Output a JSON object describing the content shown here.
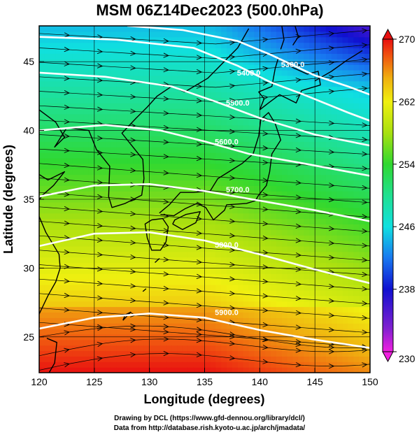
{
  "title": "MSM 06Z14Dec2023 (500.0hPa)",
  "xlabel": "Longitude (degrees)",
  "ylabel": "Latitude  (degrees)",
  "credits": {
    "line1": "Drawing by DCL (https://www.gfd-dennou.org/library/dcl/)",
    "line2": "Data from http://database.rish.kyoto-u.ac.jp/arch/jmadata/"
  },
  "chart_data": {
    "type": "heatmap",
    "title": "MSM 06Z14Dec2023 (500.0hPa)",
    "xlabel": "Longitude (degrees)",
    "ylabel": "Latitude  (degrees)",
    "xlim": [
      120,
      150
    ],
    "ylim": [
      22.4,
      47.6
    ],
    "x_ticks": [
      120,
      125,
      130,
      135,
      140,
      145,
      150
    ],
    "y_ticks": [
      25,
      30,
      35,
      40,
      45
    ],
    "grid": true,
    "colorbar": {
      "range": [
        230,
        270
      ],
      "tick_labels": [
        "270",
        "262",
        "254",
        "246",
        "238",
        "230"
      ],
      "tick_values": [
        270,
        262,
        254,
        246,
        238,
        230
      ],
      "stops": [
        {
          "value": 230,
          "color": "#f020e0"
        },
        {
          "value": 233,
          "color": "#8020d0"
        },
        {
          "value": 238,
          "color": "#1010d0"
        },
        {
          "value": 242,
          "color": "#1878f0"
        },
        {
          "value": 246,
          "color": "#10e0e0"
        },
        {
          "value": 250,
          "color": "#20e090"
        },
        {
          "value": 254,
          "color": "#30d830"
        },
        {
          "value": 258,
          "color": "#a8e010"
        },
        {
          "value": 262,
          "color": "#f0f010"
        },
        {
          "value": 265,
          "color": "#f0b010"
        },
        {
          "value": 268,
          "color": "#f05010"
        },
        {
          "value": 270,
          "color": "#e81010"
        }
      ]
    },
    "contours": [
      {
        "label": "5300.0",
        "points": [
          [
            128,
            47.6
          ],
          [
            133,
            47.3
          ],
          [
            138,
            46.5
          ],
          [
            141,
            45.5
          ],
          [
            145,
            44.0
          ],
          [
            148,
            43.2
          ],
          [
            150,
            42.6
          ]
        ],
        "label_at": [
          143,
          44.6
        ]
      },
      {
        "label": "5400.0",
        "points": [
          [
            120,
            46.8
          ],
          [
            127,
            46.6
          ],
          [
            134,
            46.0
          ],
          [
            138,
            44.7
          ],
          [
            141,
            43.5
          ],
          [
            144,
            42.6
          ],
          [
            148,
            41.3
          ],
          [
            150,
            40.7
          ]
        ],
        "label_at": [
          139,
          44.0
        ]
      },
      {
        "label": "5500.0",
        "points": [
          [
            120,
            44.2
          ],
          [
            126,
            43.9
          ],
          [
            132,
            43.2
          ],
          [
            136,
            42.1
          ],
          [
            140,
            40.9
          ],
          [
            145,
            39.7
          ],
          [
            150,
            38.9
          ]
        ],
        "label_at": [
          138,
          41.8
        ]
      },
      {
        "label": "5600.0",
        "points": [
          [
            120,
            40.0
          ],
          [
            126,
            40.4
          ],
          [
            131,
            40.0
          ],
          [
            135,
            39.2
          ],
          [
            139,
            38.3
          ],
          [
            144,
            37.6
          ],
          [
            150,
            36.7
          ]
        ],
        "label_at": [
          137,
          39.0
        ]
      },
      {
        "label": "5700.0",
        "points": [
          [
            120,
            35.2
          ],
          [
            125,
            36.0
          ],
          [
            130,
            36.1
          ],
          [
            135,
            35.6
          ],
          [
            140,
            34.9
          ],
          [
            145,
            34.2
          ],
          [
            150,
            33.4
          ]
        ],
        "label_at": [
          138,
          35.5
        ]
      },
      {
        "label": "5800.0",
        "points": [
          [
            120,
            31.6
          ],
          [
            125,
            32.5
          ],
          [
            130,
            32.6
          ],
          [
            135,
            32.0
          ],
          [
            140,
            31.0
          ],
          [
            145,
            29.9
          ],
          [
            150,
            28.9
          ]
        ],
        "label_at": [
          137,
          31.5
        ]
      },
      {
        "label": "5900.0",
        "points": [
          [
            120,
            25.6
          ],
          [
            125,
            26.4
          ],
          [
            130,
            26.7
          ],
          [
            135,
            26.4
          ],
          [
            140,
            25.5
          ],
          [
            145,
            24.8
          ],
          [
            150,
            24.2
          ]
        ],
        "label_at": [
          137,
          26.6
        ]
      }
    ],
    "wind": {
      "direction": "westerly",
      "style": "streamlines"
    }
  }
}
